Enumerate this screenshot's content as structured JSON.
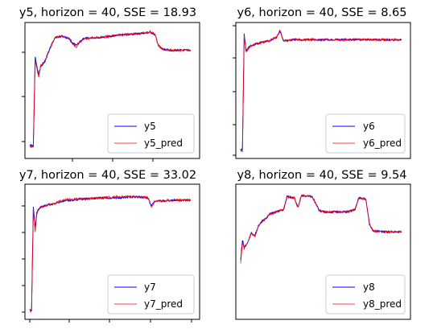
{
  "chart_data": [
    {
      "type": "line",
      "title": "y5, horizon = 40, SSE = 18.93",
      "legend": {
        "placement": "lower-right",
        "entries": [
          "y5",
          "y5_pred"
        ]
      },
      "grid": false,
      "series": [
        {
          "name": "y5",
          "color": "#0000ff",
          "points": [
            [
              0,
              0.06
            ],
            [
              2,
              0.05
            ],
            [
              3,
              0.8
            ],
            [
              4,
              0.72
            ],
            [
              5,
              0.65
            ],
            [
              6,
              0.72
            ],
            [
              8,
              0.75
            ],
            [
              12,
              0.9
            ],
            [
              14,
              0.97
            ],
            [
              18,
              0.98
            ],
            [
              22,
              0.96
            ],
            [
              24,
              0.92
            ],
            [
              26,
              0.9
            ],
            [
              30,
              0.96
            ],
            [
              40,
              0.97
            ],
            [
              50,
              0.99
            ],
            [
              60,
              1.0
            ],
            [
              68,
              1.01
            ],
            [
              70,
              0.99
            ],
            [
              72,
              0.9
            ],
            [
              74,
              0.87
            ],
            [
              80,
              0.86
            ],
            [
              86,
              0.86
            ],
            [
              90,
              0.86
            ]
          ]
        },
        {
          "name": "y5_pred",
          "color": "#ff0000",
          "points": [
            [
              0,
              0.05
            ],
            [
              2,
              0.04
            ],
            [
              3,
              0.78
            ],
            [
              4,
              0.7
            ],
            [
              5,
              0.63
            ],
            [
              6,
              0.73
            ],
            [
              8,
              0.76
            ],
            [
              12,
              0.9
            ],
            [
              14,
              0.97
            ],
            [
              18,
              0.98
            ],
            [
              22,
              0.96
            ],
            [
              24,
              0.91
            ],
            [
              26,
              0.89
            ],
            [
              30,
              0.96
            ],
            [
              40,
              0.97
            ],
            [
              50,
              0.99
            ],
            [
              60,
              1.0
            ],
            [
              68,
              1.02
            ],
            [
              70,
              0.99
            ],
            [
              72,
              0.9
            ],
            [
              74,
              0.87
            ],
            [
              80,
              0.86
            ],
            [
              86,
              0.86
            ],
            [
              90,
              0.86
            ]
          ]
        }
      ]
    },
    {
      "type": "line",
      "title": "y6, horizon = 40, SSE = 8.65",
      "legend": {
        "placement": "lower-right",
        "entries": [
          "y6",
          "y6_pred"
        ]
      },
      "grid": false,
      "series": [
        {
          "name": "y6",
          "color": "#0000ff",
          "points": [
            [
              0,
              0.02
            ],
            [
              1,
              0.02
            ],
            [
              2,
              1.0
            ],
            [
              3,
              0.85
            ],
            [
              4,
              0.88
            ],
            [
              6,
              0.9
            ],
            [
              10,
              0.92
            ],
            [
              16,
              0.94
            ],
            [
              20,
              0.97
            ],
            [
              22,
              1.02
            ],
            [
              24,
              0.94
            ],
            [
              30,
              0.95
            ],
            [
              40,
              0.95
            ],
            [
              50,
              0.95
            ],
            [
              60,
              0.95
            ],
            [
              70,
              0.95
            ],
            [
              80,
              0.95
            ],
            [
              90,
              0.95
            ]
          ]
        },
        {
          "name": "y6_pred",
          "color": "#ff0000",
          "points": [
            [
              0,
              0.01
            ],
            [
              1,
              0.01
            ],
            [
              2,
              0.98
            ],
            [
              3,
              0.84
            ],
            [
              4,
              0.87
            ],
            [
              6,
              0.9
            ],
            [
              10,
              0.92
            ],
            [
              16,
              0.94
            ],
            [
              20,
              0.97
            ],
            [
              22,
              1.03
            ],
            [
              24,
              0.94
            ],
            [
              30,
              0.95
            ],
            [
              40,
              0.95
            ],
            [
              50,
              0.95
            ],
            [
              60,
              0.95
            ],
            [
              70,
              0.95
            ],
            [
              80,
              0.95
            ],
            [
              90,
              0.95
            ]
          ]
        }
      ]
    },
    {
      "type": "line",
      "title": "y7, horizon = 40, SSE = 33.02",
      "legend": {
        "placement": "lower-right",
        "entries": [
          "y7",
          "y7_pred"
        ]
      },
      "grid": false,
      "series": [
        {
          "name": "y7",
          "color": "#0000ff",
          "points": [
            [
              0,
              0.03
            ],
            [
              1,
              0.02
            ],
            [
              2,
              0.9
            ],
            [
              3,
              0.72
            ],
            [
              4,
              0.86
            ],
            [
              6,
              0.9
            ],
            [
              10,
              0.92
            ],
            [
              14,
              0.93
            ],
            [
              18,
              0.95
            ],
            [
              24,
              0.96
            ],
            [
              30,
              0.97
            ],
            [
              40,
              0.98
            ],
            [
              50,
              0.98
            ],
            [
              60,
              0.99
            ],
            [
              66,
              0.98
            ],
            [
              68,
              0.91
            ],
            [
              70,
              0.95
            ],
            [
              80,
              0.96
            ],
            [
              90,
              0.96
            ]
          ]
        },
        {
          "name": "y7_pred",
          "color": "#ff0000",
          "points": [
            [
              0,
              0.02
            ],
            [
              1,
              0.01
            ],
            [
              2,
              0.88
            ],
            [
              3,
              0.7
            ],
            [
              4,
              0.85
            ],
            [
              6,
              0.9
            ],
            [
              10,
              0.92
            ],
            [
              14,
              0.93
            ],
            [
              18,
              0.96
            ],
            [
              24,
              0.97
            ],
            [
              30,
              0.97
            ],
            [
              40,
              0.98
            ],
            [
              50,
              0.99
            ],
            [
              60,
              0.99
            ],
            [
              66,
              0.98
            ],
            [
              68,
              0.9
            ],
            [
              70,
              0.95
            ],
            [
              80,
              0.96
            ],
            [
              90,
              0.96
            ]
          ]
        }
      ]
    },
    {
      "type": "line",
      "title": "y8, horizon = 40, SSE = 9.54",
      "legend": {
        "placement": "lower-right",
        "entries": [
          "y8",
          "y8_pred"
        ]
      },
      "grid": false,
      "series": [
        {
          "name": "y8",
          "color": "#0000ff",
          "points": [
            [
              0,
              0.45
            ],
            [
              1,
              0.62
            ],
            [
              2,
              0.56
            ],
            [
              4,
              0.6
            ],
            [
              6,
              0.68
            ],
            [
              8,
              0.66
            ],
            [
              10,
              0.74
            ],
            [
              12,
              0.78
            ],
            [
              14,
              0.8
            ],
            [
              16,
              0.84
            ],
            [
              20,
              0.86
            ],
            [
              22,
              0.87
            ],
            [
              24,
              0.88
            ],
            [
              26,
              0.99
            ],
            [
              30,
              0.98
            ],
            [
              32,
              0.9
            ],
            [
              34,
              1.0
            ],
            [
              40,
              0.99
            ],
            [
              44,
              0.87
            ],
            [
              48,
              0.86
            ],
            [
              54,
              0.86
            ],
            [
              60,
              0.86
            ],
            [
              64,
              0.88
            ],
            [
              66,
              0.98
            ],
            [
              70,
              0.97
            ],
            [
              72,
              0.76
            ],
            [
              74,
              0.7
            ],
            [
              80,
              0.69
            ],
            [
              90,
              0.69
            ]
          ]
        },
        {
          "name": "y8_pred",
          "color": "#ff0000",
          "points": [
            [
              0,
              0.43
            ],
            [
              1,
              0.6
            ],
            [
              2,
              0.55
            ],
            [
              4,
              0.6
            ],
            [
              6,
              0.68
            ],
            [
              8,
              0.65
            ],
            [
              10,
              0.74
            ],
            [
              12,
              0.78
            ],
            [
              14,
              0.8
            ],
            [
              16,
              0.84
            ],
            [
              20,
              0.86
            ],
            [
              22,
              0.87
            ],
            [
              24,
              0.88
            ],
            [
              26,
              0.99
            ],
            [
              30,
              0.98
            ],
            [
              32,
              0.9
            ],
            [
              34,
              1.0
            ],
            [
              40,
              0.99
            ],
            [
              44,
              0.87
            ],
            [
              48,
              0.86
            ],
            [
              54,
              0.86
            ],
            [
              60,
              0.86
            ],
            [
              64,
              0.88
            ],
            [
              66,
              0.98
            ],
            [
              70,
              0.97
            ],
            [
              72,
              0.76
            ],
            [
              74,
              0.7
            ],
            [
              80,
              0.69
            ],
            [
              90,
              0.69
            ]
          ]
        }
      ]
    }
  ]
}
